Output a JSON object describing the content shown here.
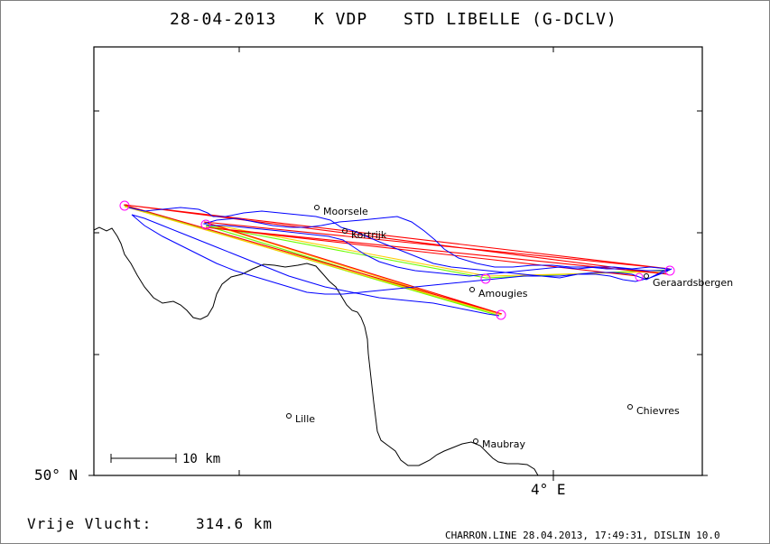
{
  "title": {
    "date": "28-04-2013",
    "pilot": "K VDP",
    "glider": "STD LIBELLE (G-DCLV)"
  },
  "map": {
    "towns": [
      {
        "name": "Moorsele"
      },
      {
        "name": "Kortrijk"
      },
      {
        "name": "Amougies"
      },
      {
        "name": "Geraardsbergen"
      },
      {
        "name": "Chievres"
      },
      {
        "name": "Lille"
      },
      {
        "name": "Maubray"
      }
    ],
    "scale_label": "10 km",
    "lat_label": "50° N",
    "lon_label": "4° E",
    "colors": {
      "track": "#0000ff",
      "task_red": "#ff0000",
      "task_green": "#66ff00",
      "task_yellow": "#ffcc00",
      "turnpoint": "#ff00ff",
      "border": "#000000"
    }
  },
  "footer": {
    "distance_label": "Vrije Vlucht:",
    "distance_value": "314.6 km",
    "credit": "CHARRON.LINE 28.04.2013, 17:49:31, DISLIN 10.0"
  }
}
